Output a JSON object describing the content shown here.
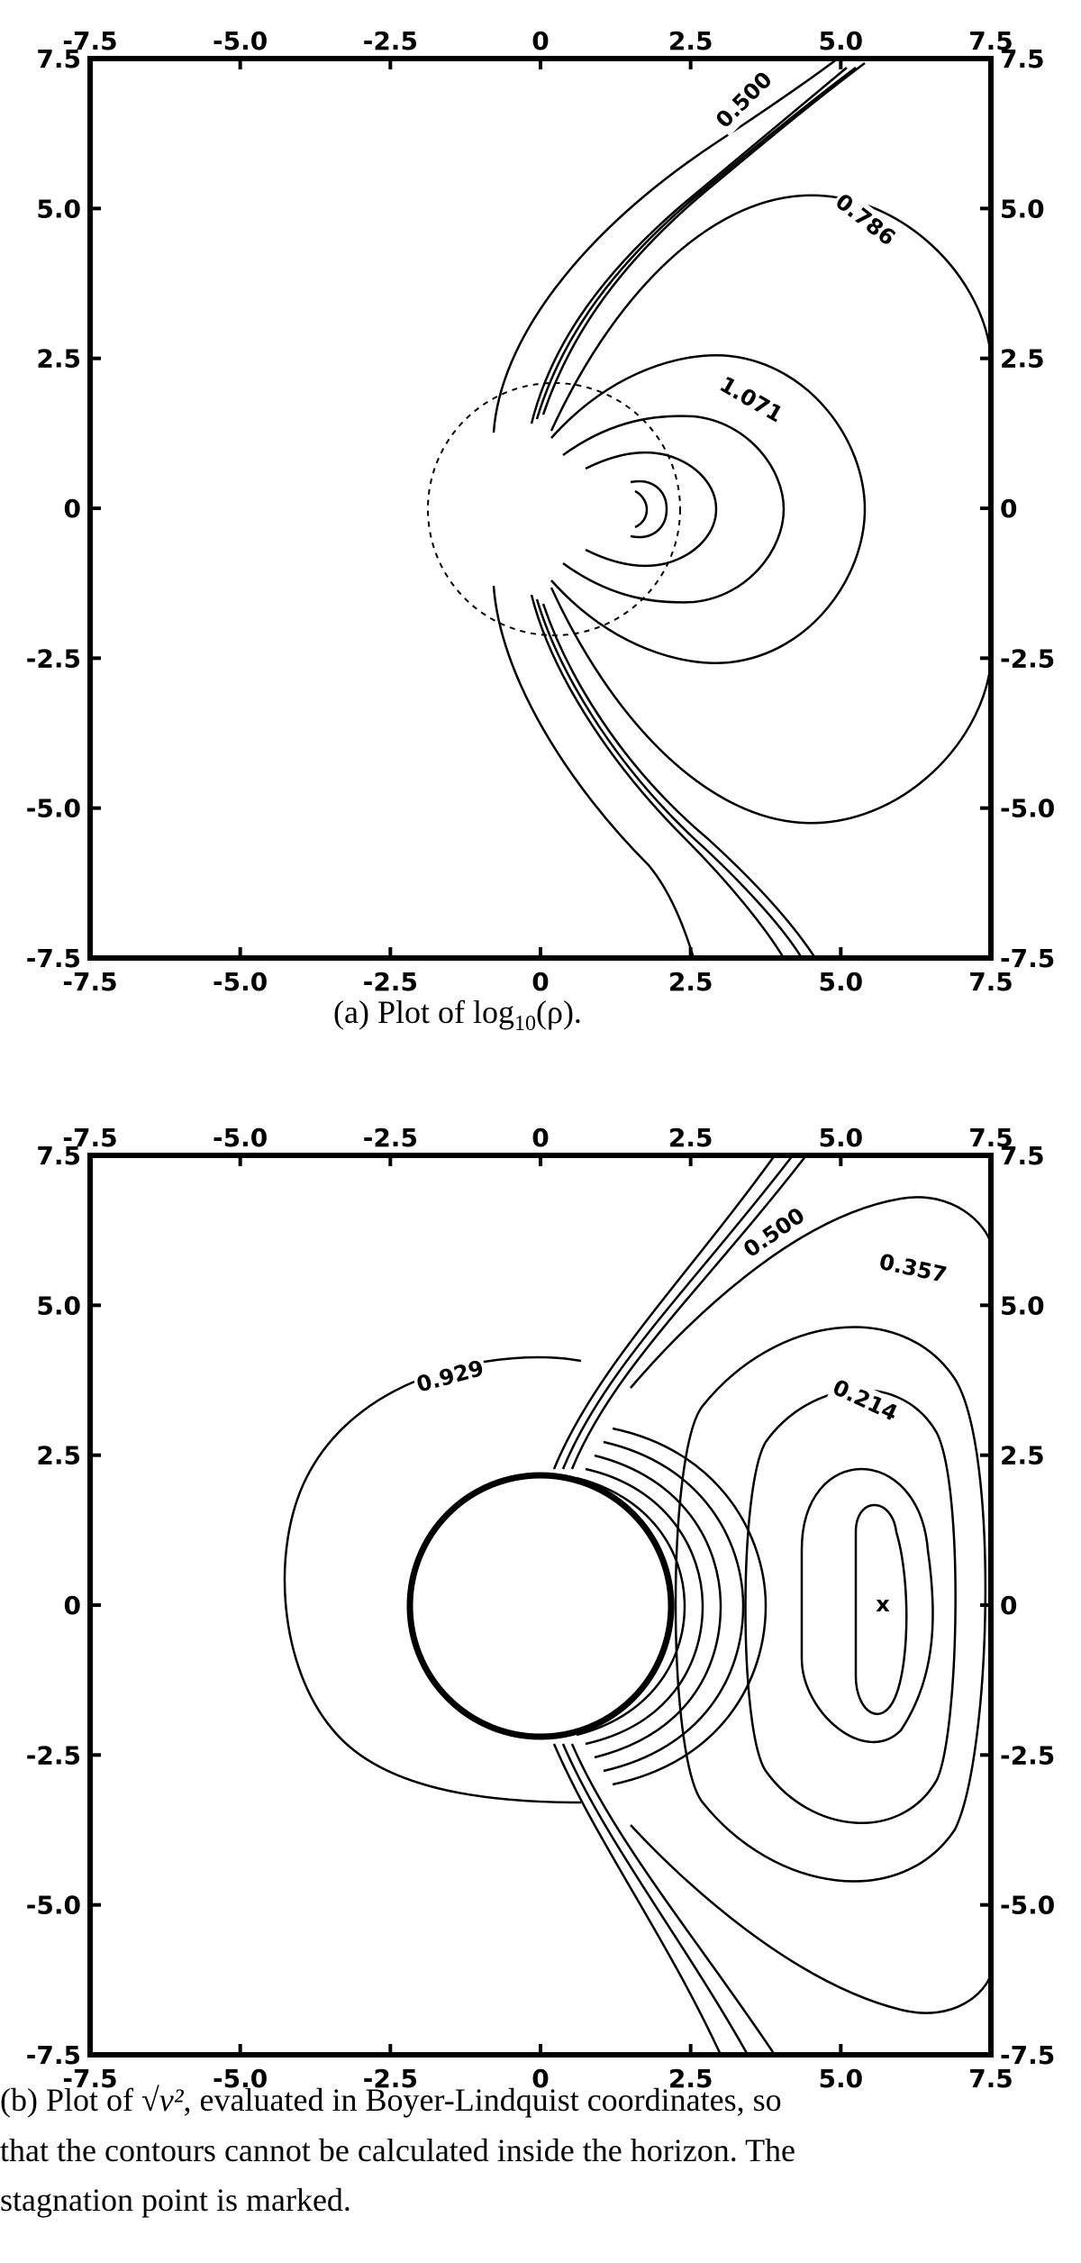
{
  "chart_data": [
    {
      "type": "contour",
      "id": "a",
      "caption": {
        "prefix": "(a)  Plot of log",
        "sub": "10",
        "suffix": "(ρ)."
      },
      "xlim": [
        -7.5,
        7.5
      ],
      "ylim": [
        -7.5,
        7.5
      ],
      "ticks": [
        -7.5,
        -5.0,
        -2.5,
        0,
        2.5,
        5.0,
        7.5
      ],
      "tick_labels": [
        "-7.5",
        "-5.0",
        "-2.5",
        "0",
        "2.5",
        "5.0",
        "7.5"
      ],
      "contour_labels": [
        {
          "text": "0.500",
          "x": 3.4,
          "y": 6.8,
          "angle": -45
        },
        {
          "text": "0.786",
          "x": 5.4,
          "y": 4.8,
          "angle": 38
        },
        {
          "text": "1.071",
          "x": 3.5,
          "y": 1.8,
          "angle": 30
        }
      ],
      "horizon_circle": {
        "cx": 0.2,
        "cy": 0,
        "r": 2.1,
        "dashed": true
      }
    },
    {
      "type": "contour",
      "id": "b",
      "caption": {
        "line1_prefix": "(b)  Plot of  ",
        "line1_suffix": ", evaluated in Boyer-Lindquist coordinates, so",
        "line2": "that the contours cannot be calculated inside the horizon.  The",
        "line3": "stagnation point is marked.",
        "math": "√v²"
      },
      "xlim": [
        -7.5,
        7.5
      ],
      "ylim": [
        -7.5,
        7.5
      ],
      "ticks": [
        -7.5,
        -5.0,
        -2.5,
        0,
        2.5,
        5.0,
        7.5
      ],
      "tick_labels": [
        "-7.5",
        "-5.0",
        "-2.5",
        "0",
        "2.5",
        "5.0",
        "7.5"
      ],
      "contour_labels": [
        {
          "text": "0.500",
          "x": 3.9,
          "y": 6.2,
          "angle": -35
        },
        {
          "text": "0.357",
          "x": 6.2,
          "y": 5.6,
          "angle": 12
        },
        {
          "text": "0.214",
          "x": 5.4,
          "y": 3.4,
          "angle": 25
        },
        {
          "text": "0.929",
          "x": -1.5,
          "y": 3.8,
          "angle": -15
        }
      ],
      "stagnation_point": {
        "x": 5.7,
        "y": 0,
        "marker": "x"
      },
      "horizon_circle": {
        "cx": 0,
        "cy": 0,
        "r": 2.2
      }
    }
  ]
}
